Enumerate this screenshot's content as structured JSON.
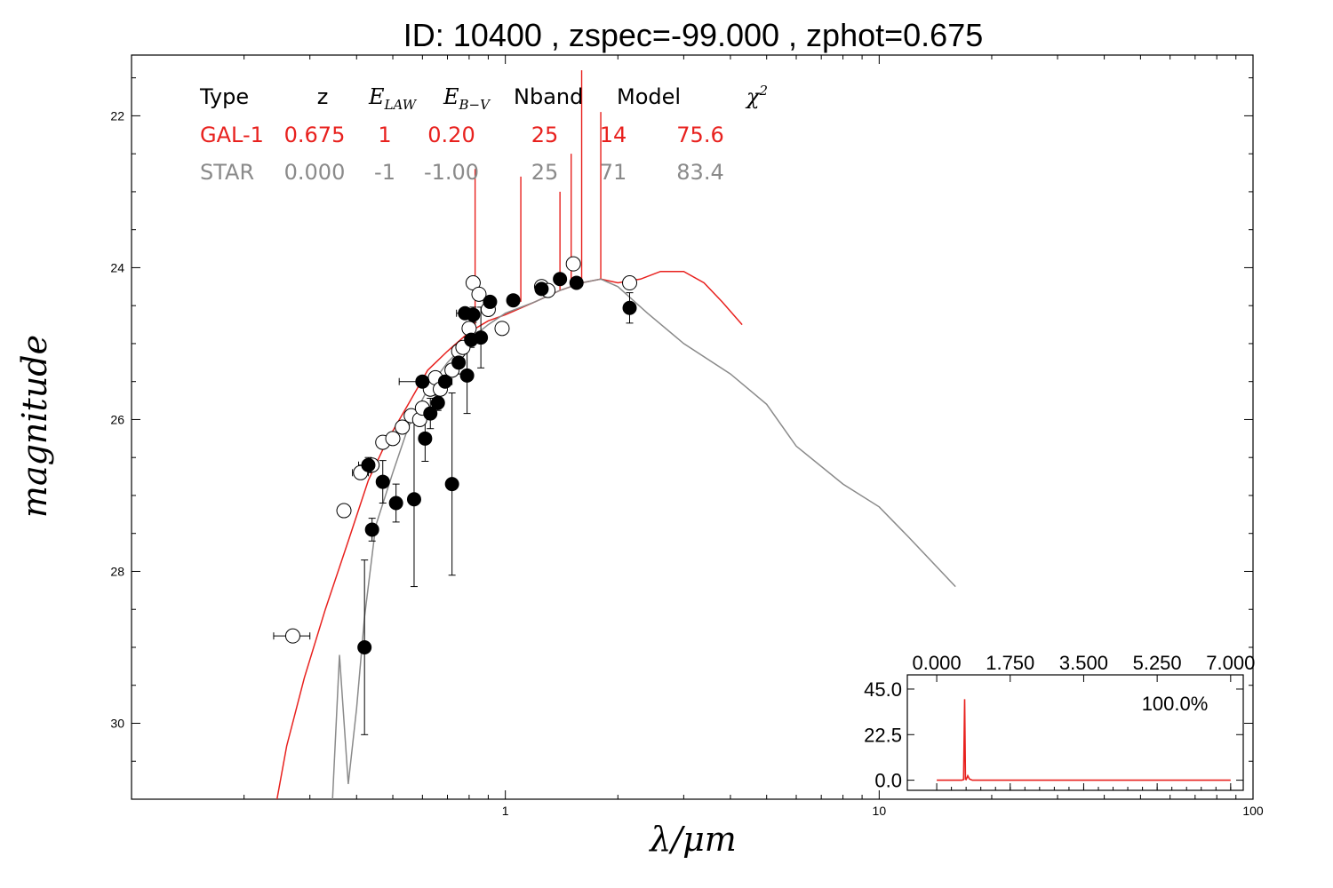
{
  "chart_data": [
    {
      "type": "line",
      "title": "ID:  10400 , zspec=-99.000 , zphot=0.675",
      "xlabel": "λ/μm",
      "ylabel": "magnitude",
      "xscale": "log",
      "xlim": [
        0.1,
        100
      ],
      "ylim": [
        31.0,
        21.2
      ],
      "y_inverted": true,
      "x_tick_labels": [
        "1",
        "10",
        "100"
      ],
      "y_tick_labels": [
        "22",
        "24",
        "26",
        "28",
        "30"
      ],
      "y_ticks": [
        22,
        24,
        26,
        28,
        30
      ],
      "grid": false,
      "legend_table": {
        "headers": [
          "Type",
          "z",
          "E_LAW",
          "E_B−V",
          "Nband",
          "Model",
          "χ²"
        ],
        "rows": [
          {
            "cells": [
              "GAL-1",
              "0.675",
              "1",
              "0.20",
              "25",
              "14",
              "75.6"
            ],
            "color": "#e8211e"
          },
          {
            "cells": [
              "STAR",
              "0.000",
              "-1",
              "-1.00",
              "25",
              "71",
              "83.4"
            ],
            "color": "#8a8a8a"
          }
        ]
      },
      "series": [
        {
          "color": "#e8211e",
          "points": [
            [
              0.245,
              31.0
            ],
            [
              0.26,
              30.3
            ],
            [
              0.29,
              29.4
            ],
            [
              0.33,
              28.5
            ],
            [
              0.38,
              27.6
            ],
            [
              0.43,
              26.8
            ],
            [
              0.48,
              26.3
            ],
            [
              0.55,
              25.8
            ],
            [
              0.62,
              25.35
            ],
            [
              0.7,
              25.1
            ],
            [
              0.8,
              24.85
            ],
            [
              0.9,
              24.7
            ],
            [
              1.0,
              24.62
            ],
            [
              1.2,
              24.45
            ],
            [
              1.4,
              24.3
            ],
            [
              1.6,
              24.2
            ],
            [
              1.8,
              24.15
            ],
            [
              2.0,
              24.2
            ],
            [
              2.3,
              24.15
            ],
            [
              2.6,
              24.05
            ],
            [
              3.0,
              24.05
            ],
            [
              3.4,
              24.2
            ],
            [
              3.8,
              24.45
            ],
            [
              4.3,
              24.75
            ]
          ],
          "emission_lines": [
            [
              0.83,
              22.7
            ],
            [
              1.1,
              22.8
            ],
            [
              1.4,
              23.0
            ],
            [
              1.5,
              22.5
            ],
            [
              1.6,
              21.4
            ],
            [
              1.8,
              21.95
            ]
          ]
        },
        {
          "color": "#8a8a8a",
          "points": [
            [
              0.345,
              31.0
            ],
            [
              0.36,
              29.1
            ],
            [
              0.38,
              30.8
            ],
            [
              0.4,
              29.8
            ],
            [
              0.42,
              28.6
            ],
            [
              0.45,
              27.4
            ],
            [
              0.5,
              26.7
            ],
            [
              0.55,
              26.1
            ],
            [
              0.62,
              25.6
            ],
            [
              0.7,
              25.25
            ],
            [
              0.8,
              24.95
            ],
            [
              0.9,
              24.75
            ],
            [
              1.0,
              24.6
            ],
            [
              1.2,
              24.45
            ],
            [
              1.4,
              24.3
            ],
            [
              1.6,
              24.2
            ],
            [
              1.8,
              24.15
            ],
            [
              2.0,
              24.25
            ],
            [
              2.4,
              24.6
            ],
            [
              3.0,
              25.0
            ],
            [
              4.0,
              25.4
            ],
            [
              5.0,
              25.8
            ],
            [
              6.0,
              26.35
            ],
            [
              8.0,
              26.85
            ],
            [
              10.0,
              27.15
            ],
            [
              12.0,
              27.55
            ],
            [
              16.0,
              28.2
            ]
          ]
        }
      ],
      "observed_filled": [
        {
          "x": 0.42,
          "y": 29.0,
          "yerr": 1.15,
          "xerr": 0.0
        },
        {
          "x": 0.43,
          "y": 26.6,
          "yerr": 0.1,
          "xerr": 0.025
        },
        {
          "x": 0.44,
          "y": 27.45,
          "yerr": 0.15,
          "xerr": 0.01
        },
        {
          "x": 0.47,
          "y": 26.82,
          "yerr": 0.28,
          "xerr": 0.01
        },
        {
          "x": 0.51,
          "y": 27.1,
          "yerr": 0.25,
          "xerr": 0.01
        },
        {
          "x": 0.57,
          "y": 27.05,
          "yerr": 1.15,
          "xerr": 0.01
        },
        {
          "x": 0.6,
          "y": 25.5,
          "yerr": 0.05,
          "xerr": 0.08
        },
        {
          "x": 0.61,
          "y": 26.25,
          "yerr": 0.3,
          "xerr": 0.01
        },
        {
          "x": 0.63,
          "y": 25.92,
          "yerr": 0.2,
          "xerr": 0.01
        },
        {
          "x": 0.66,
          "y": 25.78,
          "yerr": 0.1,
          "xerr": 0.01
        },
        {
          "x": 0.69,
          "y": 25.5,
          "yerr": 0.05,
          "xerr": 0.03
        },
        {
          "x": 0.72,
          "y": 26.85,
          "yerr": 1.2,
          "xerr": 0.01
        },
        {
          "x": 0.75,
          "y": 25.25,
          "yerr": 0.15,
          "xerr": 0.02
        },
        {
          "x": 0.78,
          "y": 24.6,
          "yerr": 0.05,
          "xerr": 0.04
        },
        {
          "x": 0.79,
          "y": 25.42,
          "yerr": 0.5,
          "xerr": 0.01
        },
        {
          "x": 0.81,
          "y": 24.95,
          "yerr": 0.1,
          "xerr": 0.02
        },
        {
          "x": 0.82,
          "y": 24.62,
          "yerr": 0.1,
          "xerr": 0.01
        },
        {
          "x": 0.86,
          "y": 24.92,
          "yerr": 0.4,
          "xerr": 0.01
        },
        {
          "x": 0.91,
          "y": 24.45,
          "yerr": 0.05,
          "xerr": 0.02
        },
        {
          "x": 1.05,
          "y": 24.43,
          "yerr": 0.05,
          "xerr": 0.02
        },
        {
          "x": 1.25,
          "y": 24.28,
          "yerr": 0.05,
          "xerr": 0.02
        },
        {
          "x": 1.4,
          "y": 24.15,
          "yerr": 0.05,
          "xerr": 0.02
        },
        {
          "x": 1.55,
          "y": 24.2,
          "yerr": 0.05,
          "xerr": 0.02
        },
        {
          "x": 2.15,
          "y": 24.53,
          "yerr": 0.2,
          "xerr": 0.05
        }
      ],
      "observed_open": [
        {
          "x": 0.27,
          "y": 28.85,
          "xerr": 0.03
        },
        {
          "x": 0.37,
          "y": 27.2,
          "xerr": 0.0
        },
        {
          "x": 0.41,
          "y": 26.7,
          "xerr": 0.02
        },
        {
          "x": 0.44,
          "y": 26.6,
          "xerr": 0.01
        },
        {
          "x": 0.47,
          "y": 26.3,
          "xerr": 0.01
        },
        {
          "x": 0.5,
          "y": 26.25,
          "xerr": 0.02
        },
        {
          "x": 0.53,
          "y": 26.1,
          "xerr": 0.01
        },
        {
          "x": 0.56,
          "y": 25.95,
          "xerr": 0.01
        },
        {
          "x": 0.59,
          "y": 26.0,
          "xerr": 0.01
        },
        {
          "x": 0.6,
          "y": 25.85,
          "xerr": 0.01
        },
        {
          "x": 0.63,
          "y": 25.6,
          "xerr": 0.01
        },
        {
          "x": 0.65,
          "y": 25.45,
          "xerr": 0.01
        },
        {
          "x": 0.67,
          "y": 25.6,
          "xerr": 0.01
        },
        {
          "x": 0.72,
          "y": 25.35,
          "xerr": 0.01
        },
        {
          "x": 0.75,
          "y": 25.1,
          "xerr": 0.02
        },
        {
          "x": 0.77,
          "y": 25.05,
          "xerr": 0.01
        },
        {
          "x": 0.8,
          "y": 24.8,
          "xerr": 0.01
        },
        {
          "x": 0.82,
          "y": 24.2,
          "xerr": 0.01
        },
        {
          "x": 0.85,
          "y": 24.35,
          "xerr": 0.01
        },
        {
          "x": 0.9,
          "y": 24.55,
          "xerr": 0.01
        },
        {
          "x": 0.98,
          "y": 24.8,
          "xerr": 0.03
        },
        {
          "x": 1.25,
          "y": 24.25,
          "xerr": 0.02
        },
        {
          "x": 1.3,
          "y": 24.3,
          "xerr": 0.02
        },
        {
          "x": 1.52,
          "y": 23.95,
          "xerr": 0.02
        },
        {
          "x": 2.15,
          "y": 24.2,
          "xerr": 0.05
        }
      ]
    },
    {
      "type": "line",
      "inset": true,
      "xlim": [
        -0.7,
        7.3
      ],
      "ylim": [
        -5,
        52
      ],
      "x_tick_labels": [
        "0.000",
        "1.750",
        "3.500",
        "5.250",
        "7.000"
      ],
      "x_ticks": [
        0.0,
        1.75,
        3.5,
        5.25,
        7.0
      ],
      "y_tick_labels": [
        "45.0",
        "22.5",
        "0.0"
      ],
      "y_ticks": [
        45.0,
        22.5,
        0.0
      ],
      "annotation": "100.0%",
      "color": "#e8211e",
      "points": [
        [
          0.0,
          0.0
        ],
        [
          0.6,
          0.0
        ],
        [
          0.64,
          0.3
        ],
        [
          0.665,
          40.0
        ],
        [
          0.685,
          0.5
        ],
        [
          0.7,
          0.3
        ],
        [
          0.74,
          2.2
        ],
        [
          0.78,
          0.6
        ],
        [
          0.85,
          0.0
        ],
        [
          7.0,
          0.0
        ]
      ]
    }
  ]
}
